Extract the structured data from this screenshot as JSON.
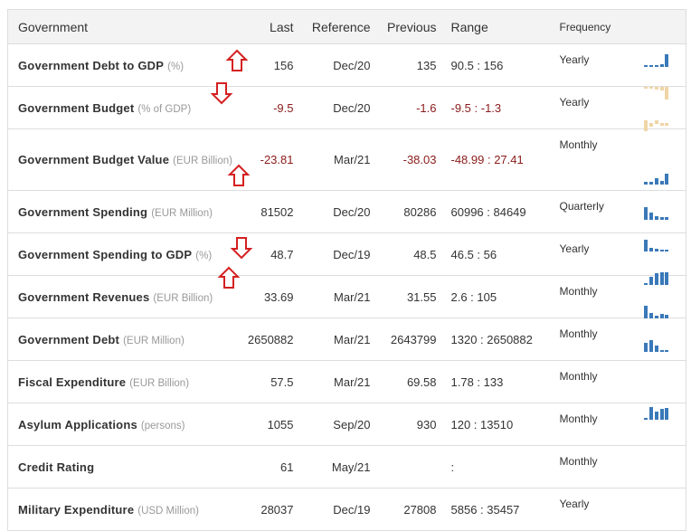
{
  "table": {
    "header": [
      "Government",
      "Last",
      "Reference",
      "Previous",
      "Range",
      "Frequency"
    ],
    "rows": [
      {
        "name": "Government Debt to GDP",
        "unit": "(%)",
        "last": "156",
        "reference": "Dec/20",
        "previous": "135",
        "range": "90.5 : 156",
        "frequency": "Yearly"
      },
      {
        "name": "Government Budget",
        "unit": "(% of GDP)",
        "last": "-9.5",
        "reference": "Dec/20",
        "previous": "-1.6",
        "range": "-9.5 : -1.3",
        "frequency": "Yearly"
      },
      {
        "name": "Government Budget Value",
        "unit": "(EUR Billion)",
        "last": "-23.81",
        "reference": "Mar/21",
        "previous": "-38.03",
        "range": "-48.99 : 27.41",
        "frequency": "Monthly"
      },
      {
        "name": "Government Spending",
        "unit": "(EUR Million)",
        "last": "81502",
        "reference": "Dec/20",
        "previous": "80286",
        "range": "60996 : 84649",
        "frequency": "Quarterly"
      },
      {
        "name": "Government Spending to GDP",
        "unit": "(%)",
        "last": "48.7",
        "reference": "Dec/19",
        "previous": "48.5",
        "range": "46.5 : 56",
        "frequency": "Yearly"
      },
      {
        "name": "Government Revenues",
        "unit": "(EUR Billion)",
        "last": "33.69",
        "reference": "Mar/21",
        "previous": "31.55",
        "range": "2.6 : 105",
        "frequency": "Monthly"
      },
      {
        "name": "Government Debt",
        "unit": "(EUR Million)",
        "last": "2650882",
        "reference": "Mar/21",
        "previous": "2643799",
        "range": "1320 : 2650882",
        "frequency": "Monthly"
      },
      {
        "name": "Fiscal Expenditure",
        "unit": "(EUR Billion)",
        "last": "57.5",
        "reference": "Mar/21",
        "previous": "69.58",
        "range": "1.78 : 133",
        "frequency": "Monthly"
      },
      {
        "name": "Asylum Applications",
        "unit": "(persons)",
        "last": "1055",
        "reference": "Sep/20",
        "previous": "930",
        "range": "120 : 13510",
        "frequency": "Monthly"
      },
      {
        "name": "Credit Rating",
        "unit": "",
        "last": "61",
        "reference": "May/21",
        "previous": "",
        "range": ":",
        "frequency": "Monthly"
      },
      {
        "name": "Military Expenditure",
        "unit": "(USD Million)",
        "last": "28037",
        "reference": "Dec/19",
        "previous": "27808",
        "range": "5856 : 35457",
        "frequency": "Yearly"
      }
    ]
  }
}
